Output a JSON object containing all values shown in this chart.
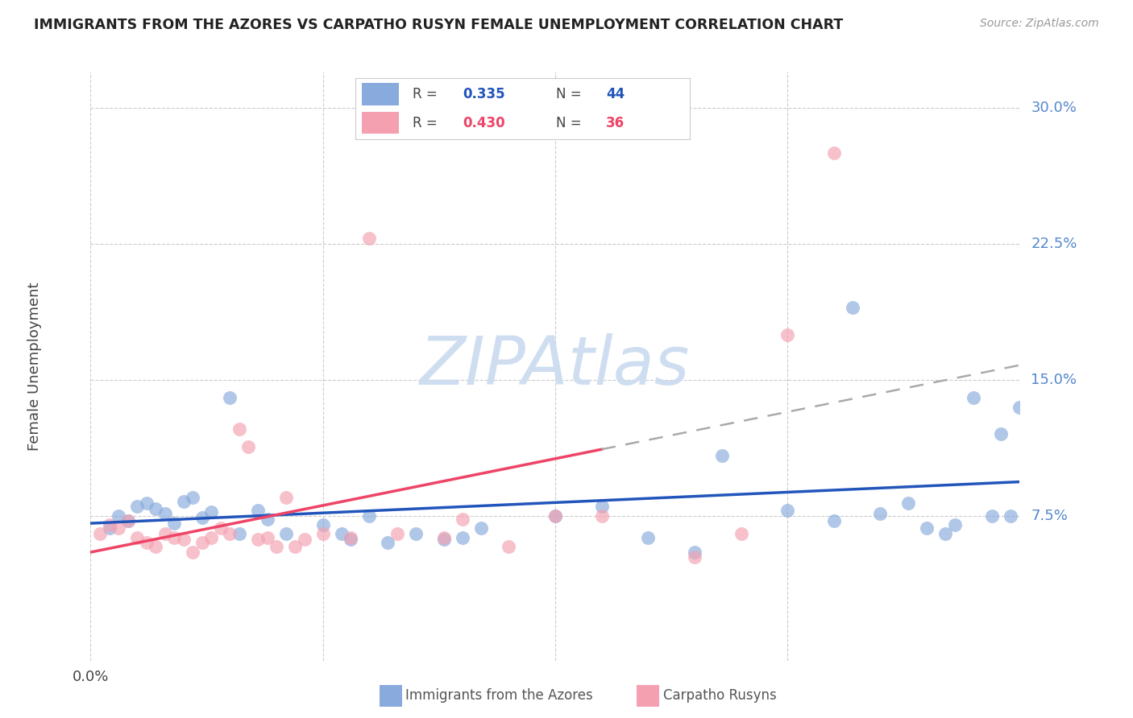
{
  "title": "IMMIGRANTS FROM THE AZORES VS CARPATHO RUSYN FEMALE UNEMPLOYMENT CORRELATION CHART",
  "source": "Source: ZipAtlas.com",
  "ylabel": "Female Unemployment",
  "xlim": [
    0.0,
    0.1
  ],
  "ylim": [
    -0.005,
    0.32
  ],
  "ytick_vals": [
    0.075,
    0.15,
    0.225,
    0.3
  ],
  "ytick_labels": [
    "7.5%",
    "15.0%",
    "22.5%",
    "30.0%"
  ],
  "color_blue": "#88AADD",
  "color_pink": "#F4A0B0",
  "color_blue_line": "#2255BB",
  "color_pink_line": "#EE4466",
  "color_dashed": "#AAAAAA",
  "watermark_text": "ZIPAtlas",
  "watermark_color": "#CCDDF0",
  "bottom_label1": "Immigrants from the Azores",
  "bottom_label2": "Carpatho Rusyns",
  "legend_r1": "0.335",
  "legend_n1": "44",
  "legend_r2": "0.430",
  "legend_n2": "36",
  "blue_x": [
    0.002,
    0.003,
    0.004,
    0.005,
    0.006,
    0.007,
    0.008,
    0.009,
    0.01,
    0.011,
    0.012,
    0.013,
    0.015,
    0.016,
    0.018,
    0.019,
    0.021,
    0.025,
    0.027,
    0.028,
    0.03,
    0.032,
    0.035,
    0.038,
    0.04,
    0.042,
    0.05,
    0.055,
    0.06,
    0.065,
    0.068,
    0.075,
    0.08,
    0.082,
    0.085,
    0.088,
    0.09,
    0.092,
    0.093,
    0.095,
    0.097,
    0.098,
    0.099,
    0.1
  ],
  "blue_y": [
    0.068,
    0.075,
    0.072,
    0.08,
    0.082,
    0.079,
    0.076,
    0.071,
    0.083,
    0.085,
    0.074,
    0.077,
    0.14,
    0.065,
    0.078,
    0.073,
    0.065,
    0.07,
    0.065,
    0.062,
    0.075,
    0.06,
    0.065,
    0.062,
    0.063,
    0.068,
    0.075,
    0.08,
    0.063,
    0.055,
    0.108,
    0.078,
    0.072,
    0.19,
    0.076,
    0.082,
    0.068,
    0.065,
    0.07,
    0.14,
    0.075,
    0.12,
    0.075,
    0.135
  ],
  "pink_x": [
    0.001,
    0.002,
    0.003,
    0.004,
    0.005,
    0.006,
    0.007,
    0.008,
    0.009,
    0.01,
    0.011,
    0.012,
    0.013,
    0.014,
    0.015,
    0.016,
    0.017,
    0.018,
    0.019,
    0.02,
    0.021,
    0.022,
    0.023,
    0.025,
    0.028,
    0.03,
    0.033,
    0.038,
    0.04,
    0.045,
    0.05,
    0.055,
    0.065,
    0.07,
    0.075,
    0.08
  ],
  "pink_y": [
    0.065,
    0.07,
    0.068,
    0.072,
    0.063,
    0.06,
    0.058,
    0.065,
    0.063,
    0.062,
    0.055,
    0.06,
    0.063,
    0.068,
    0.065,
    0.123,
    0.113,
    0.062,
    0.063,
    0.058,
    0.085,
    0.058,
    0.062,
    0.065,
    0.063,
    0.228,
    0.065,
    0.063,
    0.073,
    0.058,
    0.075,
    0.075,
    0.052,
    0.065,
    0.175,
    0.275
  ]
}
